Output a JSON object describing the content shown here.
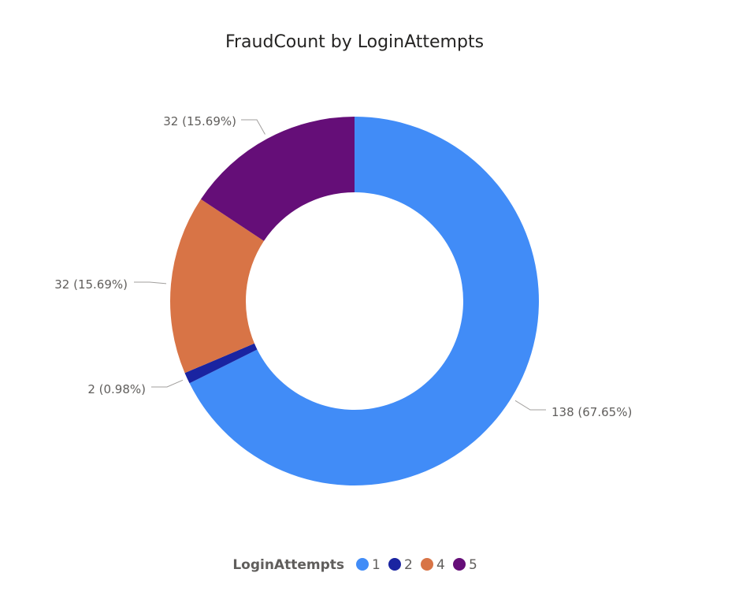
{
  "chart_data": {
    "type": "pie",
    "variant": "donut",
    "title": "FraudCount by LoginAttempts",
    "legend_title": "LoginAttempts",
    "legend_position": "bottom-center",
    "categories": [
      "1",
      "2",
      "4",
      "5"
    ],
    "values": [
      138,
      2,
      32,
      32
    ],
    "labels": [
      "138 (67.65%)",
      "2 (0.98%)",
      "32 (15.69%)",
      "32 (15.69%)"
    ],
    "colors": [
      "#418CF7",
      "#1A24A1",
      "#D87446",
      "#650E78"
    ]
  }
}
